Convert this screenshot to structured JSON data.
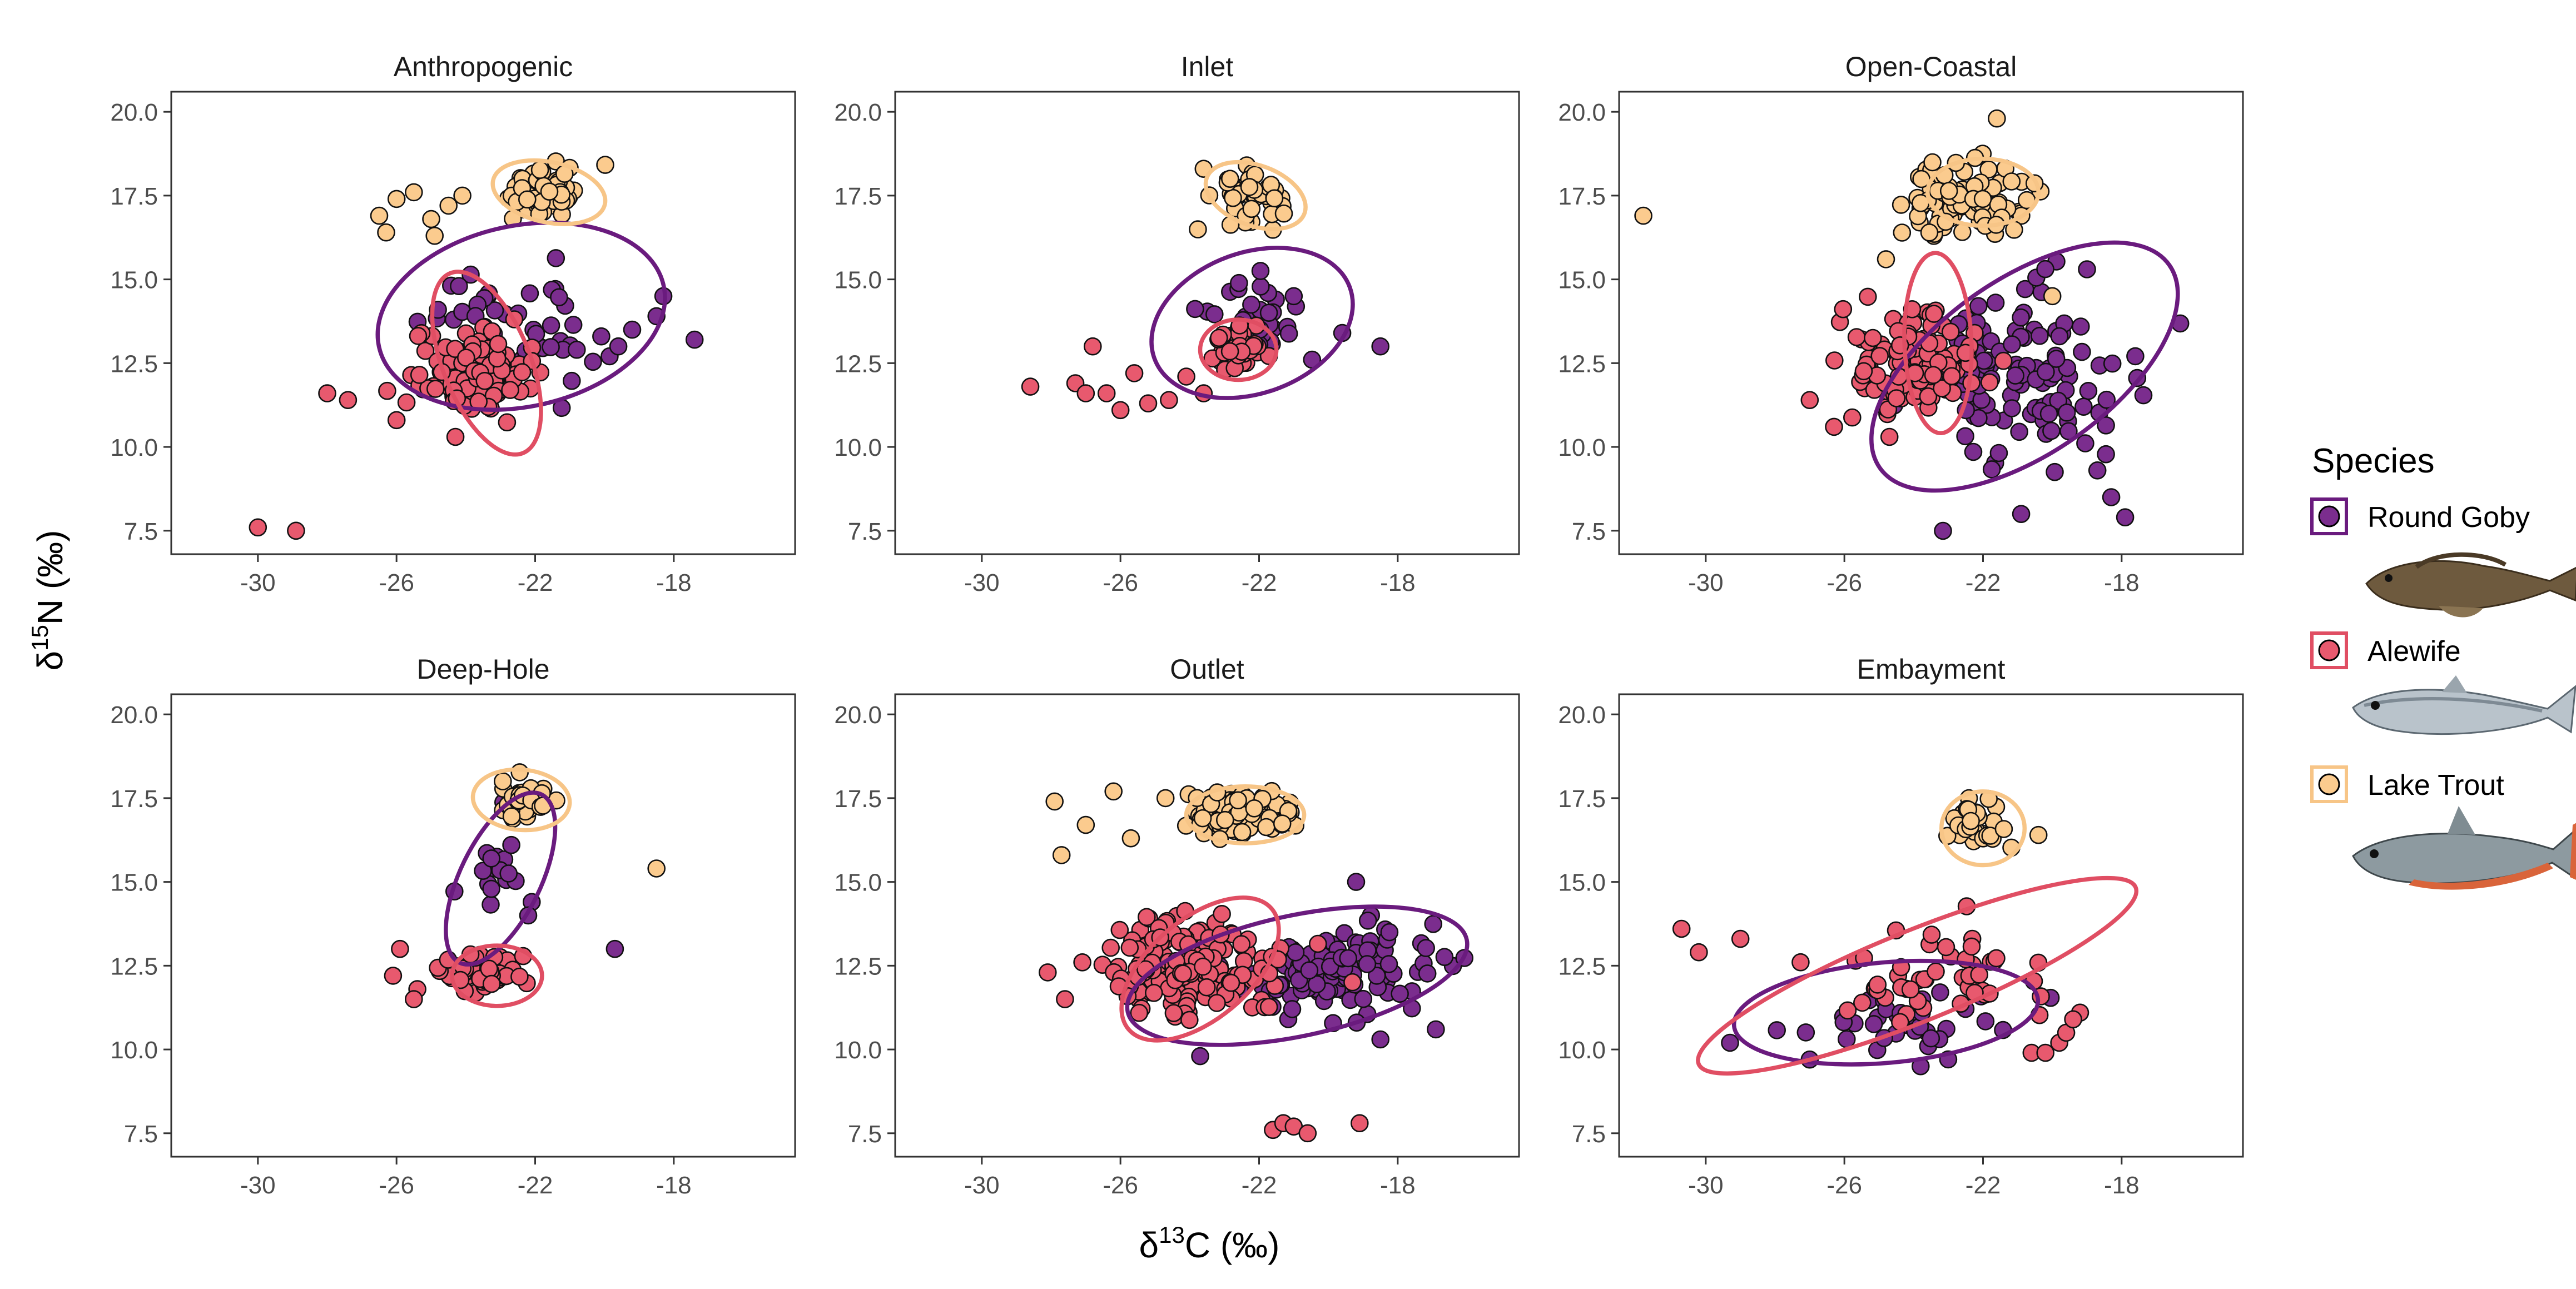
{
  "chart_data": {
    "type": "scatter",
    "xlabel": "δ13C (‰)",
    "ylabel": "δ15N (‰)",
    "xlim": [
      -32.5,
      -14.5
    ],
    "ylim": [
      6.8,
      20.6
    ],
    "x_ticks": [
      -30,
      -26,
      -22,
      -18
    ],
    "y_ticks": [
      7.5,
      10.0,
      12.5,
      15.0,
      17.5,
      20.0
    ],
    "x_tick_labels": [
      "-30",
      "-26",
      "-22",
      "-18"
    ],
    "y_tick_labels": [
      "7.5",
      "10.0",
      "12.5",
      "15.0",
      "17.5",
      "20.0"
    ],
    "legend": {
      "title": "Species",
      "position": "right",
      "entries": [
        {
          "name": "Round Goby",
          "color": "#7B2D8E"
        },
        {
          "name": "Alewife",
          "color": "#E8596E"
        },
        {
          "name": "Lake Trout",
          "color": "#FBCB8E"
        }
      ]
    },
    "series": [
      {
        "name": "Round Goby",
        "color": "#7B2D8E",
        "ellipse_color": "#6A1B7E"
      },
      {
        "name": "Alewife",
        "color": "#E8596E",
        "ellipse_color": "#E04E63"
      },
      {
        "name": "Lake Trout",
        "color": "#FBCB8E",
        "ellipse_color": "#F7C587"
      }
    ],
    "panels": [
      {
        "title": "Anthropogenic",
        "ellipses": [
          {
            "species": "Round Goby",
            "cx": -22.4,
            "cy": 13.9,
            "rx": 4.2,
            "ry": 2.7,
            "angle": -12
          },
          {
            "species": "Alewife",
            "cx": -23.4,
            "cy": 12.5,
            "rx": 2.8,
            "ry": 1.3,
            "angle": 68
          },
          {
            "species": "Lake Trout",
            "cx": -21.6,
            "cy": 17.6,
            "rx": 1.65,
            "ry": 0.9,
            "angle": 12
          }
        ],
        "clusters": [
          {
            "species": "Round Goby",
            "cx": -22.5,
            "cy": 13.6,
            "sx": 1.7,
            "sy": 1.3,
            "n": 45
          },
          {
            "species": "Alewife",
            "cx": -24.0,
            "cy": 12.2,
            "sx": 1.1,
            "sy": 0.8,
            "n": 115
          },
          {
            "species": "Lake Trout",
            "cx": -21.6,
            "cy": 17.6,
            "sx": 0.8,
            "sy": 0.45,
            "n": 70
          }
        ],
        "points": [
          {
            "species": "Round Goby",
            "x": [
              -17.4,
              -18.5,
              -18.3,
              -19.2,
              -19.6,
              -20.8,
              -24.2
            ],
            "y": [
              13.2,
              13.9,
              14.5,
              13.5,
              13.0,
              12.9,
              14.8
            ]
          },
          {
            "species": "Alewife",
            "x": [
              -30.0,
              -28.9,
              -28.0,
              -27.4,
              -26.0,
              -24.3
            ],
            "y": [
              7.6,
              7.5,
              11.6,
              11.4,
              10.8,
              10.3
            ]
          },
          {
            "species": "Lake Trout",
            "x": [
              -26.5,
              -26.0,
              -25.5,
              -25.0,
              -24.5,
              -24.9,
              -26.3,
              -24.1
            ],
            "y": [
              16.9,
              17.4,
              17.6,
              16.8,
              17.2,
              16.3,
              16.4,
              17.5
            ]
          }
        ]
      },
      {
        "title": "Inlet",
        "ellipses": [
          {
            "species": "Round Goby",
            "cx": -22.2,
            "cy": 13.7,
            "rx": 3.0,
            "ry": 2.1,
            "angle": -20
          },
          {
            "species": "Alewife",
            "cx": -22.6,
            "cy": 12.9,
            "rx": 1.1,
            "ry": 0.9,
            "angle": 0
          },
          {
            "species": "Lake Trout",
            "cx": -22.1,
            "cy": 17.5,
            "rx": 1.5,
            "ry": 0.9,
            "angle": 20
          }
        ],
        "clusters": [
          {
            "species": "Round Goby",
            "cx": -22.2,
            "cy": 13.8,
            "sx": 1.0,
            "sy": 1.0,
            "n": 30
          },
          {
            "species": "Alewife",
            "cx": -22.7,
            "cy": 12.9,
            "sx": 0.5,
            "sy": 0.4,
            "n": 40
          },
          {
            "species": "Lake Trout",
            "cx": -22.3,
            "cy": 17.4,
            "sx": 0.6,
            "sy": 0.45,
            "n": 55
          }
        ],
        "points": [
          {
            "species": "Round Goby",
            "x": [
              -18.5,
              -19.6,
              -21.0
            ],
            "y": [
              13.0,
              13.4,
              14.5
            ]
          },
          {
            "species": "Alewife",
            "x": [
              -28.6,
              -27.3,
              -26.8,
              -26.4,
              -25.6,
              -25.2,
              -24.6,
              -24.1,
              -23.6,
              -27.0,
              -26.0
            ],
            "y": [
              11.8,
              11.9,
              13.0,
              11.6,
              12.2,
              11.3,
              11.4,
              12.1,
              11.6,
              11.6,
              11.1
            ]
          },
          {
            "species": "Lake Trout",
            "x": [
              -23.6
            ],
            "y": [
              18.3
            ]
          }
        ]
      },
      {
        "title": "Open-Coastal",
        "ellipses": [
          {
            "species": "Round Goby",
            "cx": -20.8,
            "cy": 12.4,
            "rx": 5.1,
            "ry": 2.6,
            "angle": -35
          },
          {
            "species": "Alewife",
            "cx": -23.3,
            "cy": 13.1,
            "rx": 2.6,
            "ry": 1.0,
            "angle": 88
          },
          {
            "species": "Lake Trout",
            "cx": -22.0,
            "cy": 17.6,
            "rx": 1.6,
            "ry": 1.0,
            "angle": 0
          }
        ],
        "clusters": [
          {
            "species": "Round Goby",
            "cx": -20.9,
            "cy": 12.2,
            "sx": 2.0,
            "sy": 1.8,
            "n": 120
          },
          {
            "species": "Alewife",
            "cx": -24.0,
            "cy": 12.6,
            "sx": 1.1,
            "sy": 0.9,
            "n": 120
          },
          {
            "species": "Lake Trout",
            "cx": -22.6,
            "cy": 17.4,
            "sx": 1.2,
            "sy": 0.7,
            "n": 95
          }
        ],
        "points": [
          {
            "species": "Round Goby",
            "x": [
              -18.3,
              -17.9,
              -18.7,
              -20.9,
              -19.0
            ],
            "y": [
              8.5,
              7.9,
              9.3,
              8.0,
              15.3
            ]
          },
          {
            "species": "Alewife",
            "x": [
              -27.0,
              -26.3,
              -24.7
            ],
            "y": [
              11.4,
              10.6,
              10.3
            ]
          },
          {
            "species": "Lake Trout",
            "x": [
              -31.8,
              -24.8,
              -21.6,
              -20.0
            ],
            "y": [
              16.9,
              15.6,
              19.8,
              14.5
            ]
          }
        ]
      },
      {
        "title": "Deep-Hole",
        "ellipses": [
          {
            "species": "Round Goby",
            "cx": -23.0,
            "cy": 15.1,
            "rx": 2.7,
            "ry": 1.2,
            "angle": -64
          },
          {
            "species": "Alewife",
            "cx": -23.1,
            "cy": 12.2,
            "rx": 1.3,
            "ry": 0.9,
            "angle": 0
          },
          {
            "species": "Lake Trout",
            "cx": -22.4,
            "cy": 17.45,
            "rx": 1.4,
            "ry": 0.9,
            "angle": 5
          }
        ],
        "clusters": [
          {
            "species": "Round Goby",
            "cx": -23.1,
            "cy": 15.4,
            "sx": 0.6,
            "sy": 0.9,
            "n": 16
          },
          {
            "species": "Alewife",
            "cx": -23.5,
            "cy": 12.3,
            "sx": 0.8,
            "sy": 0.35,
            "n": 60
          },
          {
            "species": "Lake Trout",
            "cx": -22.3,
            "cy": 17.5,
            "sx": 0.5,
            "sy": 0.35,
            "n": 45
          }
        ],
        "points": [
          {
            "species": "Round Goby",
            "x": [
              -19.7,
              -22.1,
              -22.2
            ],
            "y": [
              13.0,
              14.4,
              14.0
            ]
          },
          {
            "species": "Alewife",
            "x": [
              -25.9,
              -25.4,
              -26.1,
              -25.5
            ],
            "y": [
              13.0,
              11.8,
              12.2,
              11.5
            ]
          },
          {
            "species": "Lake Trout",
            "x": [
              -18.5
            ],
            "y": [
              15.4
            ]
          }
        ]
      },
      {
        "title": "Outlet",
        "ellipses": [
          {
            "species": "Round Goby",
            "cx": -20.9,
            "cy": 12.2,
            "rx": 5.0,
            "ry": 1.8,
            "angle": -12
          },
          {
            "species": "Alewife",
            "cx": -23.7,
            "cy": 12.4,
            "rx": 2.7,
            "ry": 1.5,
            "angle": -40
          },
          {
            "species": "Lake Trout",
            "cx": -22.4,
            "cy": 17.0,
            "rx": 1.7,
            "ry": 0.85,
            "angle": 0
          }
        ],
        "clusters": [
          {
            "species": "Round Goby",
            "cx": -20.0,
            "cy": 12.3,
            "sx": 1.9,
            "sy": 0.9,
            "n": 120
          },
          {
            "species": "Alewife",
            "cx": -24.0,
            "cy": 12.4,
            "sx": 1.6,
            "sy": 1.0,
            "n": 160
          },
          {
            "species": "Lake Trout",
            "cx": -22.6,
            "cy": 17.1,
            "sx": 0.9,
            "sy": 0.45,
            "n": 110
          }
        ],
        "points": [
          {
            "species": "Round Goby",
            "x": [
              -23.7,
              -18.5,
              -16.9,
              -19.2
            ],
            "y": [
              9.8,
              10.3,
              10.6,
              15.0
            ]
          },
          {
            "species": "Alewife",
            "x": [
              -21.6,
              -21.3,
              -21.0,
              -20.6,
              -19.1,
              -28.1,
              -27.6,
              -27.1
            ],
            "y": [
              7.6,
              7.8,
              7.7,
              7.5,
              7.8,
              12.3,
              11.5,
              12.6
            ]
          },
          {
            "species": "Lake Trout",
            "x": [
              -27.9,
              -27.7,
              -27.0,
              -26.2,
              -25.7,
              -24.7
            ],
            "y": [
              17.4,
              15.8,
              16.7,
              17.7,
              16.3,
              17.5
            ]
          }
        ]
      },
      {
        "title": "Embayment",
        "ellipses": [
          {
            "species": "Round Goby",
            "cx": -24.8,
            "cy": 11.1,
            "rx": 4.4,
            "ry": 1.5,
            "angle": -5
          },
          {
            "species": "Alewife",
            "cx": -23.9,
            "cy": 12.2,
            "rx": 6.8,
            "ry": 1.35,
            "angle": -22
          },
          {
            "species": "Lake Trout",
            "cx": -22.0,
            "cy": 16.6,
            "rx": 1.2,
            "ry": 1.1,
            "angle": 0
          }
        ],
        "clusters": [
          {
            "species": "Round Goby",
            "cx": -24.3,
            "cy": 11.0,
            "sx": 2.6,
            "sy": 0.8,
            "n": 38
          },
          {
            "species": "Alewife",
            "cx": -23.0,
            "cy": 12.3,
            "sx": 2.5,
            "sy": 0.9,
            "n": 48
          },
          {
            "species": "Lake Trout",
            "cx": -22.1,
            "cy": 16.7,
            "sx": 0.55,
            "sy": 0.55,
            "n": 28
          }
        ],
        "points": [
          {
            "species": "Round Goby",
            "x": [
              -29.3,
              -27.0,
              -23.8
            ],
            "y": [
              10.2,
              9.7,
              9.5
            ]
          },
          {
            "species": "Alewife",
            "x": [
              -30.7,
              -30.2,
              -29.0,
              -20.6,
              -20.2,
              -19.8,
              -19.2,
              -19.6,
              -19.4
            ],
            "y": [
              13.6,
              12.9,
              13.3,
              9.9,
              9.9,
              10.2,
              11.1,
              10.5,
              10.9
            ]
          },
          {
            "species": "Lake Trout",
            "x": [
              -20.4
            ],
            "y": [
              16.4
            ]
          }
        ]
      }
    ]
  },
  "legend_images": [
    {
      "species": "Round Goby",
      "icon": "round-goby-illustration"
    },
    {
      "species": "Alewife",
      "icon": "alewife-illustration"
    },
    {
      "species": "Lake Trout",
      "icon": "lake-trout-illustration"
    }
  ]
}
